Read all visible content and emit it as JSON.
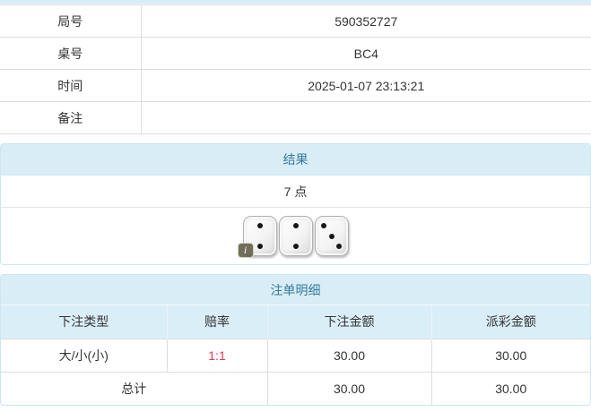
{
  "info_table": {
    "rows": [
      {
        "label": "局号",
        "value": "590352727"
      },
      {
        "label": "桌号",
        "value": "BC4"
      },
      {
        "label": "时间",
        "value": "2025-01-07 23:13:21"
      },
      {
        "label": "备注",
        "value": ""
      }
    ]
  },
  "result_panel": {
    "title": "结果",
    "points": "7 点",
    "dice": [
      2,
      2,
      3
    ],
    "info_badge": "i"
  },
  "bets_panel": {
    "title": "注单明细",
    "columns": [
      "下注类型",
      "赔率",
      "下注金额",
      "派彩金额"
    ],
    "rows": [
      {
        "type": "大/小(小)",
        "odds": "1:1",
        "bet": "30.00",
        "payout": "30.00"
      }
    ],
    "total": {
      "label": "总计",
      "bet": "30.00",
      "payout": "30.00"
    }
  },
  "colors": {
    "section_header_bg": "#d9edf7",
    "section_header_text": "#357b9e",
    "panel_border": "#c9e7f2",
    "cell_border": "#dddddd",
    "odds_red": "#e03a4e",
    "text": "#333333"
  }
}
